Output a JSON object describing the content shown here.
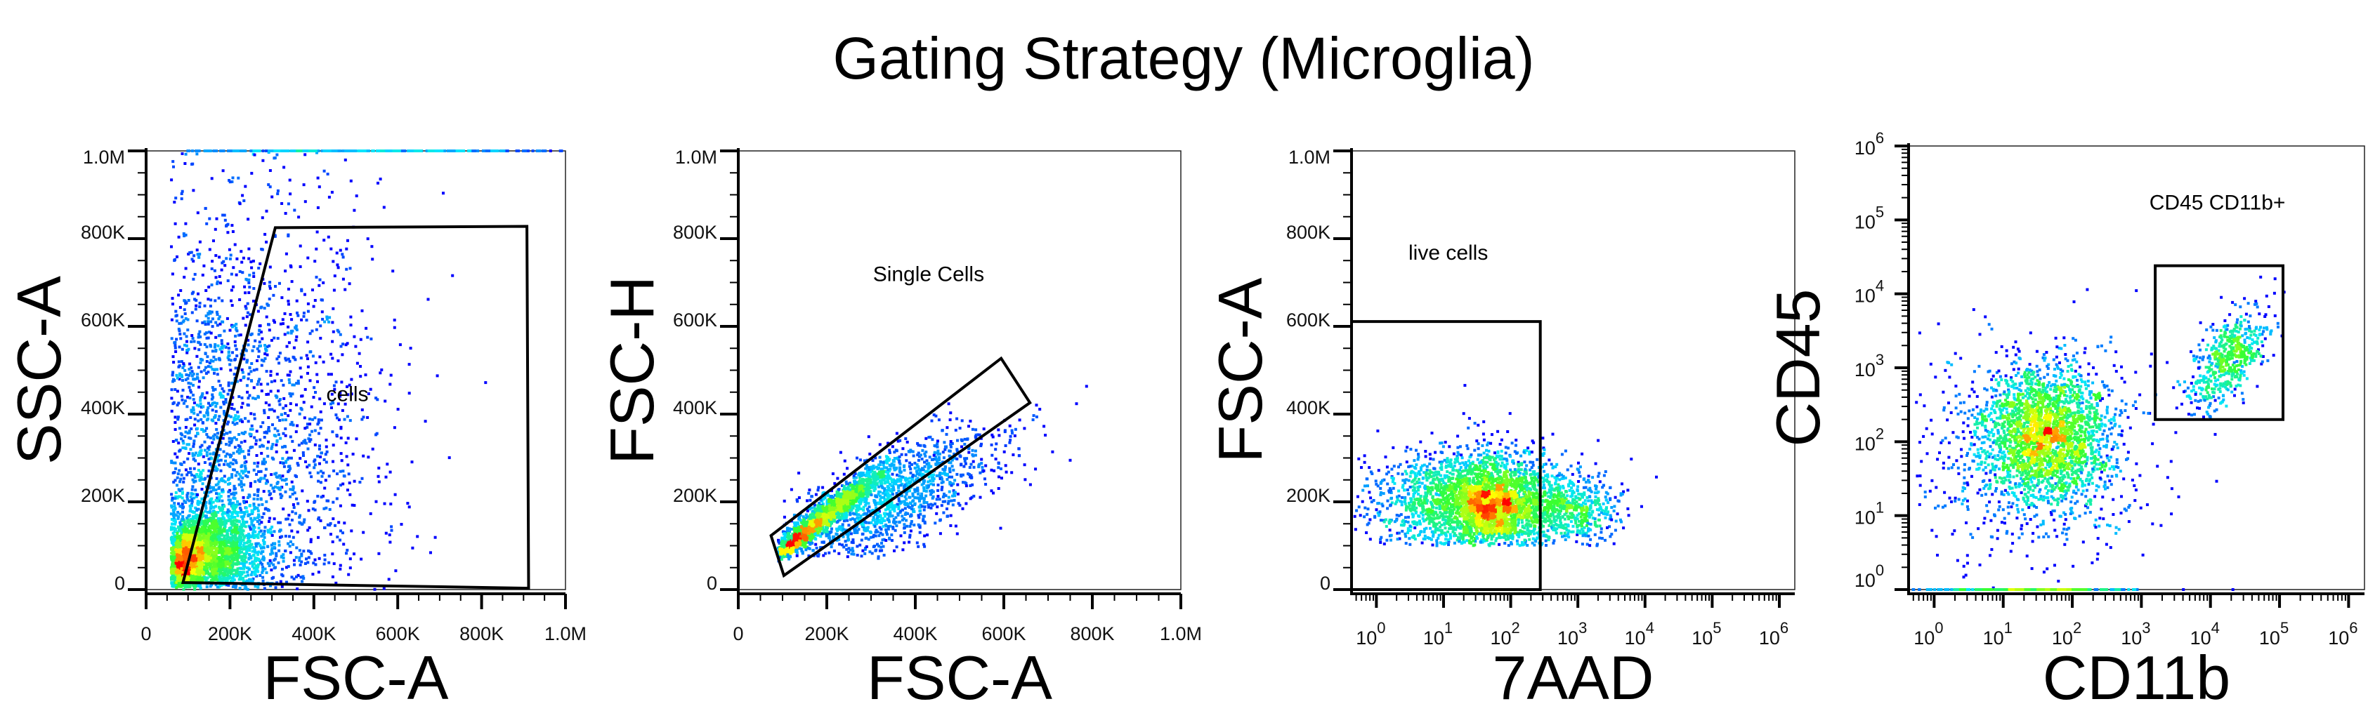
{
  "title": "Gating Strategy (Microglia)",
  "colors": {
    "low": "#0000ff",
    "mid1": "#00e5ff",
    "mid2": "#33ff33",
    "mid3": "#ffff00",
    "high": "#ff0000",
    "gate": "#000000"
  },
  "chart_data": [
    {
      "type": "scatter",
      "xlabel": "FSC-A",
      "ylabel": "SSC-A",
      "xscale": "linear",
      "yscale": "linear",
      "xlim": [
        0,
        1000000
      ],
      "ylim": [
        0,
        1000000
      ],
      "x_ticks": [
        {
          "value": 0,
          "label": "0"
        },
        {
          "value": 200000,
          "label": "200K"
        },
        {
          "value": 400000,
          "label": "400K"
        },
        {
          "value": 600000,
          "label": "600K"
        },
        {
          "value": 800000,
          "label": "800K"
        },
        {
          "value": 1000000,
          "label": "1.0M"
        }
      ],
      "y_ticks": [
        {
          "value": 0,
          "label": "0"
        },
        {
          "value": 200000,
          "label": "200K"
        },
        {
          "value": 400000,
          "label": "400K"
        },
        {
          "value": 600000,
          "label": "600K"
        },
        {
          "value": 800000,
          "label": "800K"
        },
        {
          "value": 1000000,
          "label": "1.0M"
        }
      ],
      "gate": {
        "label": "cells",
        "label_at": [
          480000,
          430000
        ],
        "polygon": [
          [
            88000,
            16000
          ],
          [
            308000,
            825000
          ],
          [
            908000,
            828000
          ],
          [
            912000,
            3000
          ]
        ]
      },
      "populations": [
        {
          "n": 1800,
          "x": {
            "mean": 150000,
            "sd": 60000,
            "min": 60000
          },
          "y": {
            "mean": 90000,
            "sd": 50000,
            "min": 5000
          },
          "rho": 0
        },
        {
          "n": 900,
          "x": {
            "mean": 90000,
            "sd": 25000,
            "min": 60000
          },
          "y": {
            "mean": 60000,
            "sd": 35000,
            "min": 5000
          },
          "rho": 0
        },
        {
          "n": 2200,
          "x": {
            "mean": 150000,
            "sd": 190000,
            "min": 60000
          },
          "y": {
            "mean": 250000,
            "sd": 320000,
            "min": 0
          },
          "rho": 0
        },
        {
          "n": 300,
          "x": {
            "mean": 500000,
            "sd": 300000,
            "min": 90000
          },
          "y": {
            "mean": 1000000,
            "sd": 0,
            "min": 0
          },
          "rho": 0
        }
      ]
    },
    {
      "type": "scatter",
      "xlabel": "FSC-A",
      "ylabel": "FSC-H",
      "xscale": "linear",
      "yscale": "linear",
      "xlim": [
        0,
        1000000
      ],
      "ylim": [
        0,
        1000000
      ],
      "x_ticks": [
        {
          "value": 0,
          "label": "0"
        },
        {
          "value": 200000,
          "label": "200K"
        },
        {
          "value": 400000,
          "label": "400K"
        },
        {
          "value": 600000,
          "label": "600K"
        },
        {
          "value": 800000,
          "label": "800K"
        },
        {
          "value": 1000000,
          "label": "1.0M"
        }
      ],
      "y_ticks": [
        {
          "value": 0,
          "label": "0"
        },
        {
          "value": 200000,
          "label": "200K"
        },
        {
          "value": 400000,
          "label": "400K"
        },
        {
          "value": 600000,
          "label": "600K"
        },
        {
          "value": 800000,
          "label": "800K"
        },
        {
          "value": 1000000,
          "label": "1.0M"
        }
      ],
      "gate": {
        "label": "Single Cells",
        "label_at": [
          430000,
          703000
        ],
        "polygon": [
          [
            74000,
            123000
          ],
          [
            594000,
            527000
          ],
          [
            659000,
            426000
          ],
          [
            103000,
            32000
          ]
        ]
      },
      "populations": [
        {
          "n": 1500,
          "x": {
            "mean": 200000,
            "sd": 70000,
            "min": 90000
          },
          "y": {
            "mean": 170000,
            "sd": 55000,
            "min": 60000
          },
          "rho": 0.95
        },
        {
          "n": 500,
          "x": {
            "mean": 130000,
            "sd": 30000,
            "min": 90000
          },
          "y": {
            "mean": 110000,
            "sd": 25000,
            "min": 60000
          },
          "rho": 0.95
        },
        {
          "n": 1300,
          "x": {
            "mean": 330000,
            "sd": 130000,
            "min": 100000
          },
          "y": {
            "mean": 200000,
            "sd": 80000,
            "min": 70000
          },
          "rho": 0.7
        }
      ]
    },
    {
      "type": "scatter",
      "xlabel": "7AAD",
      "ylabel": "FSC-A",
      "xscale": "log",
      "yscale": "linear",
      "xlim_log10": [
        -0.37,
        6.23
      ],
      "ylim": [
        0,
        1000000
      ],
      "x_ticks": [
        {
          "base": "10",
          "exp": "0"
        },
        {
          "base": "10",
          "exp": "1"
        },
        {
          "base": "10",
          "exp": "2"
        },
        {
          "base": "10",
          "exp": "3"
        },
        {
          "base": "10",
          "exp": "4"
        },
        {
          "base": "10",
          "exp": "5"
        },
        {
          "base": "10",
          "exp": "6"
        }
      ],
      "y_ticks": [
        {
          "value": 0,
          "label": "0"
        },
        {
          "value": 200000,
          "label": "200K"
        },
        {
          "value": 400000,
          "label": "400K"
        },
        {
          "value": 600000,
          "label": "600K"
        },
        {
          "value": 800000,
          "label": "800K"
        },
        {
          "value": 1000000,
          "label": "1.0M"
        }
      ],
      "gate": {
        "label": "live cells",
        "label_at": [
          1.07,
          752000
        ],
        "polygon": [
          [
            -0.37,
            0
          ],
          [
            -0.37,
            611000
          ],
          [
            2.44,
            611000
          ],
          [
            2.44,
            0
          ]
        ]
      },
      "populations": [
        {
          "n": 2300,
          "x": {
            "mean": 1.5,
            "sd": 0.75,
            "min": -0.35
          },
          "y": {
            "mean": 200000,
            "sd": 60000,
            "min": 100000
          },
          "rho": 0
        },
        {
          "n": 900,
          "x": {
            "mean": 1.7,
            "sd": 0.3,
            "min": -0.35
          },
          "y": {
            "mean": 190000,
            "sd": 45000,
            "min": 100000
          },
          "rho": 0
        },
        {
          "n": 450,
          "x": {
            "mean": 2.9,
            "sd": 0.35,
            "min": -0.35
          },
          "y": {
            "mean": 180000,
            "sd": 40000,
            "min": 100000
          },
          "rho": 0
        }
      ]
    },
    {
      "type": "scatter",
      "xlabel": "CD11b",
      "ylabel": "CD45",
      "xscale": "log",
      "yscale": "log",
      "xlim_log10": [
        -0.37,
        6.23
      ],
      "ylim_log10": [
        0,
        6
      ],
      "x_ticks": [
        {
          "base": "10",
          "exp": "0"
        },
        {
          "base": "10",
          "exp": "1"
        },
        {
          "base": "10",
          "exp": "2"
        },
        {
          "base": "10",
          "exp": "3"
        },
        {
          "base": "10",
          "exp": "4"
        },
        {
          "base": "10",
          "exp": "5"
        },
        {
          "base": "10",
          "exp": "6"
        }
      ],
      "y_ticks": [
        {
          "base": "10",
          "exp": "0"
        },
        {
          "base": "10",
          "exp": "1"
        },
        {
          "base": "10",
          "exp": "2"
        },
        {
          "base": "10",
          "exp": "3"
        },
        {
          "base": "10",
          "exp": "4"
        },
        {
          "base": "10",
          "exp": "5"
        },
        {
          "base": "10",
          "exp": "6"
        }
      ],
      "gate": {
        "label": "CD45 CD11b+",
        "label_at": [
          4.1,
          5.14
        ],
        "polygon": [
          [
            3.2,
            4.38
          ],
          [
            5.05,
            4.38
          ],
          [
            5.05,
            2.3
          ],
          [
            3.2,
            2.3
          ]
        ]
      },
      "populations": [
        {
          "n": 2200,
          "x": {
            "mean": 1.6,
            "sd": 0.45,
            "min": -0.35
          },
          "y": {
            "mean": 2.1,
            "sd": 0.45,
            "min": 0
          },
          "rho": 0
        },
        {
          "n": 600,
          "x": {
            "mean": 1.4,
            "sd": 0.9,
            "min": -0.35
          },
          "y": {
            "mean": 1.8,
            "sd": 0.8,
            "min": 0
          },
          "rho": 0
        },
        {
          "n": 550,
          "x": {
            "mean": 4.25,
            "sd": 0.3,
            "min": 3.3
          },
          "y": {
            "mean": 3.1,
            "sd": 0.35,
            "min": 2.3
          },
          "rho": 0.6
        },
        {
          "n": 260,
          "x": {
            "mean": 1.3,
            "sd": 0.8,
            "min": -0.35
          },
          "y": {
            "mean": 0,
            "sd": 0,
            "min": 0
          },
          "rho": 0
        }
      ]
    }
  ]
}
